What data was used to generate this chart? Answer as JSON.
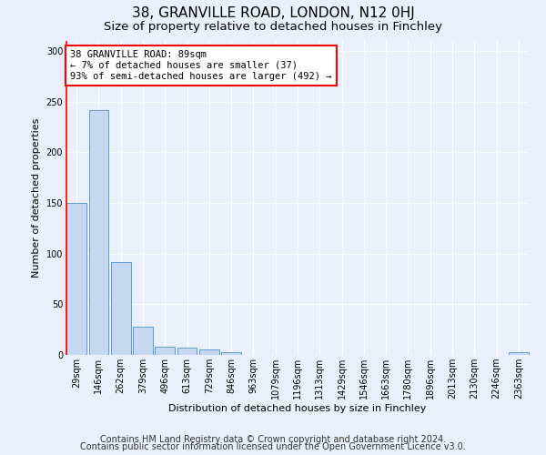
{
  "title1": "38, GRANVILLE ROAD, LONDON, N12 0HJ",
  "title2": "Size of property relative to detached houses in Finchley",
  "xlabel": "Distribution of detached houses by size in Finchley",
  "ylabel": "Number of detached properties",
  "categories": [
    "29sqm",
    "146sqm",
    "262sqm",
    "379sqm",
    "496sqm",
    "613sqm",
    "729sqm",
    "846sqm",
    "963sqm",
    "1079sqm",
    "1196sqm",
    "1313sqm",
    "1429sqm",
    "1546sqm",
    "1663sqm",
    "1780sqm",
    "1896sqm",
    "2013sqm",
    "2130sqm",
    "2246sqm",
    "2363sqm"
  ],
  "values": [
    150,
    242,
    92,
    28,
    8,
    7,
    5,
    3,
    0,
    0,
    0,
    0,
    0,
    0,
    0,
    0,
    0,
    0,
    0,
    0,
    3
  ],
  "bar_color": "#c5d8f0",
  "bar_edge_color": "#5b9bd5",
  "annotation_text_line1": "38 GRANVILLE ROAD: 89sqm",
  "annotation_text_line2": "← 7% of detached houses are smaller (37)",
  "annotation_text_line3": "93% of semi-detached houses are larger (492) →",
  "annotation_box_color": "white",
  "annotation_box_edge": "red",
  "ylim": [
    0,
    310
  ],
  "yticks": [
    0,
    50,
    100,
    150,
    200,
    250,
    300
  ],
  "footnote1": "Contains HM Land Registry data © Crown copyright and database right 2024.",
  "footnote2": "Contains public sector information licensed under the Open Government Licence v3.0.",
  "bg_color": "#eaf0fb",
  "grid_color": "#ffffff",
  "title1_fontsize": 11,
  "title2_fontsize": 9.5,
  "axis_label_fontsize": 8,
  "tick_fontsize": 7,
  "footnote_fontsize": 7
}
